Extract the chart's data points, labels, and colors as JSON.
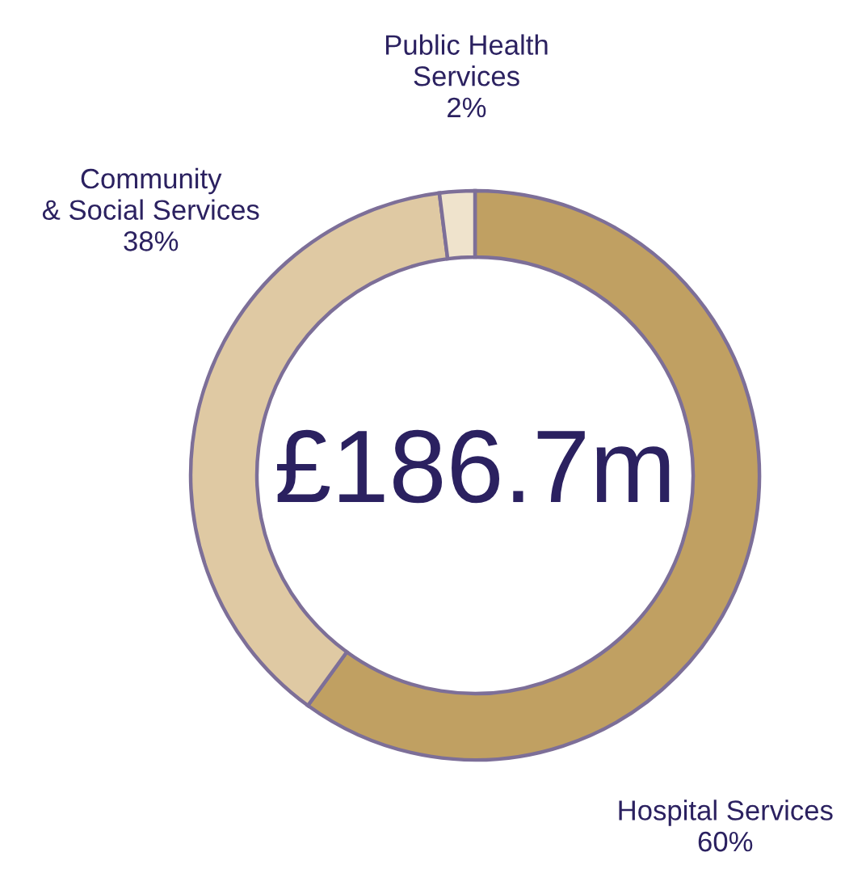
{
  "chart_data": {
    "type": "donut",
    "categories": [
      "Hospital Services",
      "Community\n& Social Services",
      "Public Health\nServices"
    ],
    "values": [
      60,
      38,
      2
    ],
    "colors": [
      "#c0a062",
      "#dfc9a3",
      "#efe3cc"
    ],
    "value_labels": [
      "60%",
      "38%",
      "2%"
    ],
    "annotations": [
      "£186.7m"
    ],
    "legend": false
  }
}
